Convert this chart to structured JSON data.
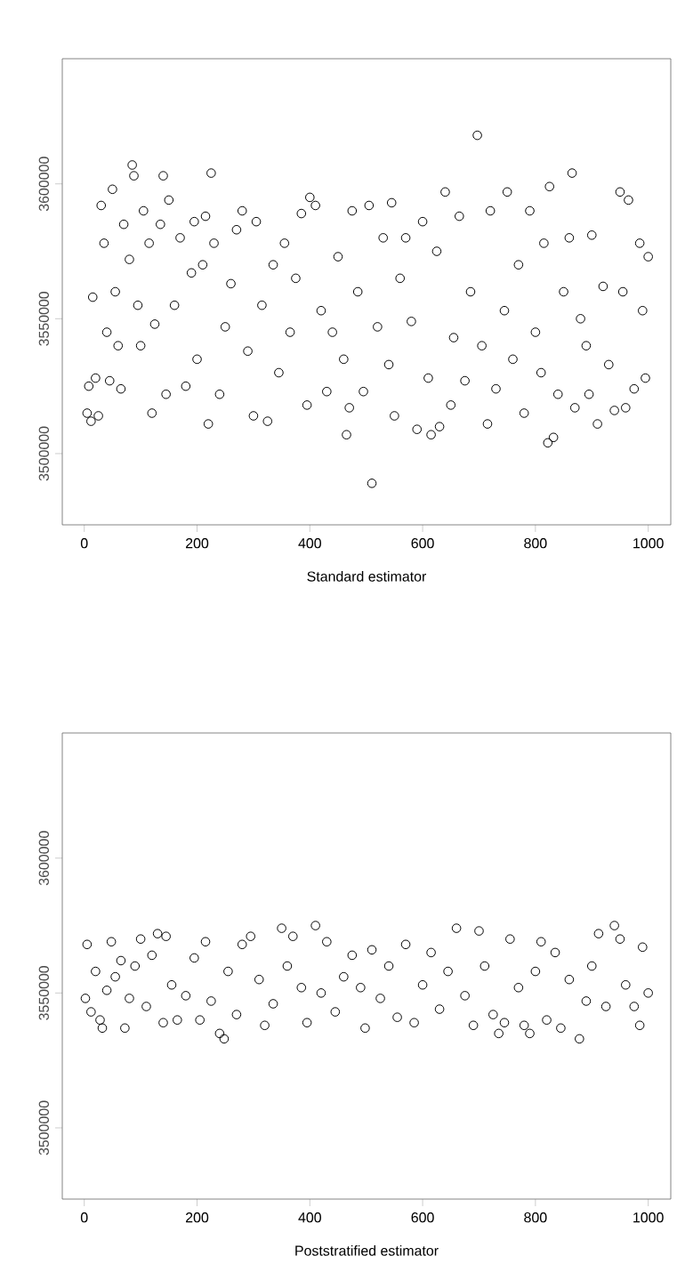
{
  "chart_data": [
    {
      "type": "scatter",
      "xlabel": "Standard estimator",
      "color": "#000000",
      "marker": "circle",
      "xlim": [
        -39,
        1040
      ],
      "ylim": [
        3473600,
        3646400
      ],
      "xticks": [
        0,
        200,
        400,
        600,
        800,
        1000
      ],
      "yticks": [
        3500000,
        3550000,
        3600000
      ],
      "x": [
        5,
        8,
        12,
        15,
        20,
        25,
        30,
        35,
        40,
        45,
        50,
        55,
        60,
        65,
        70,
        80,
        85,
        88,
        95,
        100,
        105,
        115,
        120,
        125,
        135,
        140,
        145,
        150,
        160,
        170,
        180,
        190,
        195,
        200,
        210,
        215,
        220,
        225,
        230,
        240,
        250,
        260,
        270,
        280,
        290,
        300,
        305,
        315,
        325,
        335,
        345,
        355,
        365,
        375,
        385,
        395,
        400,
        410,
        420,
        430,
        440,
        450,
        460,
        465,
        470,
        475,
        485,
        495,
        505,
        510,
        520,
        530,
        540,
        545,
        550,
        560,
        570,
        580,
        590,
        600,
        610,
        615,
        625,
        630,
        640,
        650,
        655,
        665,
        675,
        685,
        697,
        705,
        715,
        720,
        730,
        745,
        750,
        760,
        770,
        780,
        790,
        800,
        810,
        815,
        822,
        825,
        832,
        840,
        850,
        860,
        865,
        870,
        880,
        890,
        895,
        900,
        910,
        920,
        930,
        940,
        950,
        955,
        960,
        965,
        975,
        985,
        990,
        995,
        1000
      ],
      "values": [
        3515000,
        3525000,
        3512000,
        3558000,
        3528000,
        3514000,
        3592000,
        3578000,
        3545000,
        3527000,
        3598000,
        3560000,
        3540000,
        3524000,
        3585000,
        3572000,
        3607000,
        3603000,
        3555000,
        3540000,
        3590000,
        3578000,
        3515000,
        3548000,
        3585000,
        3603000,
        3522000,
        3594000,
        3555000,
        3580000,
        3525000,
        3567000,
        3586000,
        3535000,
        3570000,
        3588000,
        3511000,
        3604000,
        3578000,
        3522000,
        3547000,
        3563000,
        3583000,
        3590000,
        3538000,
        3514000,
        3586000,
        3555000,
        3512000,
        3570000,
        3530000,
        3578000,
        3545000,
        3565000,
        3589000,
        3518000,
        3595000,
        3592000,
        3553000,
        3523000,
        3545000,
        3573000,
        3535000,
        3507000,
        3517000,
        3590000,
        3560000,
        3523000,
        3592000,
        3489000,
        3547000,
        3580000,
        3533000,
        3593000,
        3514000,
        3565000,
        3580000,
        3549000,
        3509000,
        3586000,
        3528000,
        3507000,
        3575000,
        3510000,
        3597000,
        3518000,
        3543000,
        3588000,
        3527000,
        3560000,
        3618000,
        3540000,
        3511000,
        3590000,
        3524000,
        3553000,
        3597000,
        3535000,
        3570000,
        3515000,
        3590000,
        3545000,
        3530000,
        3578000,
        3504000,
        3599000,
        3506000,
        3522000,
        3560000,
        3580000,
        3604000,
        3517000,
        3550000,
        3540000,
        3522000,
        3581000,
        3511000,
        3562000,
        3533000,
        3516000,
        3597000,
        3560000,
        3517000,
        3594000,
        3524000,
        3578000,
        3553000,
        3528000,
        3573000
      ]
    },
    {
      "type": "scatter",
      "xlabel": "Poststratified estimator",
      "color": "#000000",
      "marker": "circle",
      "xlim": [
        -39,
        1040
      ],
      "ylim": [
        3473600,
        3646400
      ],
      "xticks": [
        0,
        200,
        400,
        600,
        800,
        1000
      ],
      "yticks": [
        3500000,
        3550000,
        3600000
      ],
      "x": [
        2,
        5,
        12,
        20,
        28,
        32,
        40,
        48,
        55,
        65,
        72,
        80,
        90,
        100,
        110,
        120,
        130,
        140,
        145,
        155,
        165,
        180,
        195,
        205,
        215,
        225,
        240,
        248,
        255,
        270,
        280,
        295,
        310,
        320,
        335,
        350,
        360,
        370,
        385,
        395,
        410,
        420,
        430,
        445,
        460,
        475,
        490,
        498,
        510,
        525,
        540,
        555,
        570,
        585,
        600,
        615,
        630,
        645,
        660,
        675,
        690,
        700,
        710,
        725,
        735,
        745,
        755,
        770,
        780,
        790,
        800,
        810,
        820,
        835,
        845,
        860,
        878,
        890,
        900,
        912,
        925,
        940,
        950,
        960,
        975,
        985,
        990,
        1000
      ],
      "values": [
        3548000,
        3568000,
        3543000,
        3558000,
        3540000,
        3537000,
        3551000,
        3569000,
        3556000,
        3562000,
        3537000,
        3548000,
        3560000,
        3570000,
        3545000,
        3564000,
        3572000,
        3539000,
        3571000,
        3553000,
        3540000,
        3549000,
        3563000,
        3540000,
        3569000,
        3547000,
        3535000,
        3533000,
        3558000,
        3542000,
        3568000,
        3571000,
        3555000,
        3538000,
        3546000,
        3574000,
        3560000,
        3571000,
        3552000,
        3539000,
        3575000,
        3550000,
        3569000,
        3543000,
        3556000,
        3564000,
        3552000,
        3537000,
        3566000,
        3548000,
        3560000,
        3541000,
        3568000,
        3539000,
        3553000,
        3565000,
        3544000,
        3558000,
        3574000,
        3549000,
        3538000,
        3573000,
        3560000,
        3542000,
        3535000,
        3539000,
        3570000,
        3552000,
        3538000,
        3535000,
        3558000,
        3569000,
        3540000,
        3565000,
        3537000,
        3555000,
        3533000,
        3547000,
        3560000,
        3572000,
        3545000,
        3575000,
        3570000,
        3553000,
        3545000,
        3538000,
        3567000,
        3550000
      ]
    }
  ]
}
